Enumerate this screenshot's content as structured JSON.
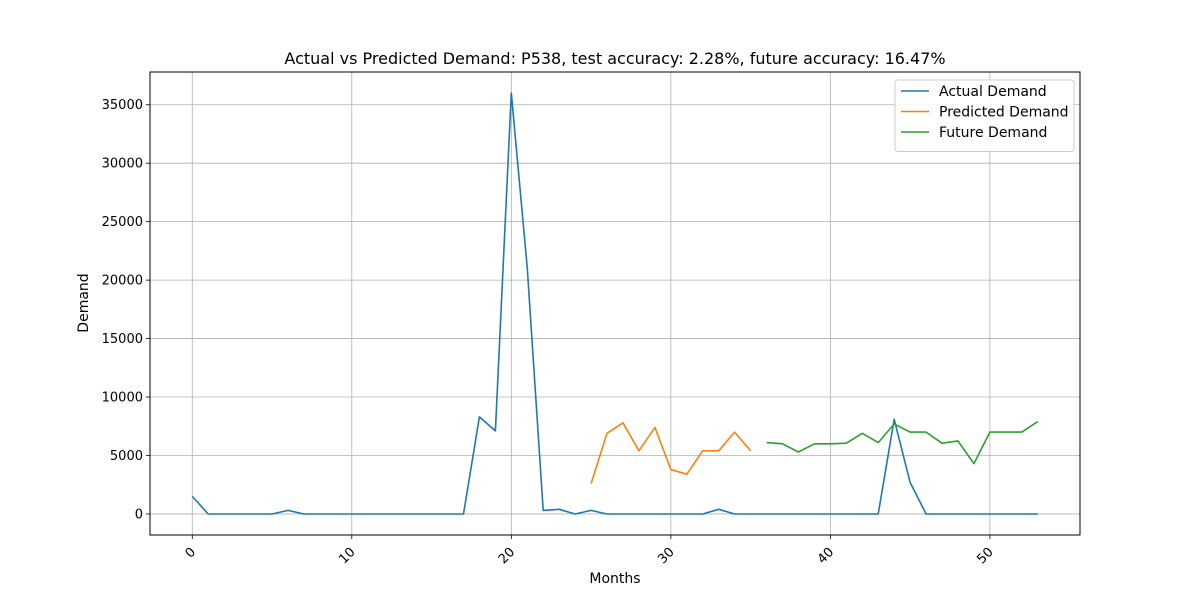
{
  "chart_data": {
    "type": "line",
    "title": "Actual vs Predicted Demand: P538, test accuracy: 2.28%, future accuracy: 16.47%",
    "xlabel": "Months",
    "ylabel": "Demand",
    "xlim": [
      -2.65,
      55.65
    ],
    "ylim": [
      -1800,
      37800
    ],
    "xticks": [
      0,
      10,
      20,
      30,
      40,
      50
    ],
    "yticks": [
      0,
      5000,
      10000,
      15000,
      20000,
      25000,
      30000,
      35000
    ],
    "grid": true,
    "legend_position": "top-right",
    "series": [
      {
        "name": "Actual Demand",
        "color": "#1f77b4",
        "x": [
          0,
          1,
          2,
          3,
          4,
          5,
          6,
          7,
          8,
          9,
          10,
          11,
          12,
          13,
          14,
          15,
          16,
          17,
          18,
          19,
          20,
          21,
          22,
          23,
          24,
          25,
          26,
          27,
          28,
          29,
          30,
          31,
          32,
          33,
          34,
          35,
          36,
          37,
          38,
          39,
          40,
          41,
          42,
          43,
          44,
          45,
          46,
          47,
          48,
          49,
          50,
          51,
          52,
          53
        ],
        "values": [
          1500,
          0,
          0,
          0,
          0,
          0,
          300,
          0,
          0,
          0,
          0,
          0,
          0,
          0,
          0,
          0,
          0,
          0,
          8300,
          7100,
          36000,
          21000,
          300,
          400,
          0,
          300,
          0,
          0,
          0,
          0,
          0,
          0,
          0,
          400,
          0,
          0,
          0,
          0,
          0,
          0,
          0,
          0,
          0,
          0,
          8100,
          2700,
          0,
          0,
          0,
          0,
          0,
          0,
          0,
          0
        ]
      },
      {
        "name": "Predicted Demand",
        "color": "#ff7f0e",
        "x": [
          25,
          26,
          27,
          28,
          29,
          30,
          31,
          32,
          33,
          34,
          35
        ],
        "values": [
          2600,
          6900,
          7800,
          5400,
          7400,
          3800,
          3400,
          5400,
          5400,
          7000,
          5400
        ]
      },
      {
        "name": "Future Demand",
        "color": "#2ca02c",
        "x": [
          36,
          37,
          38,
          39,
          40,
          41,
          42,
          43,
          44,
          45,
          46,
          47,
          48,
          49,
          50,
          51,
          52,
          53
        ],
        "values": [
          6100,
          6000,
          5300,
          6000,
          6000,
          6050,
          6900,
          6100,
          7700,
          7000,
          7000,
          6050,
          6250,
          4300,
          7000,
          7000,
          7000,
          7900
        ]
      }
    ]
  }
}
